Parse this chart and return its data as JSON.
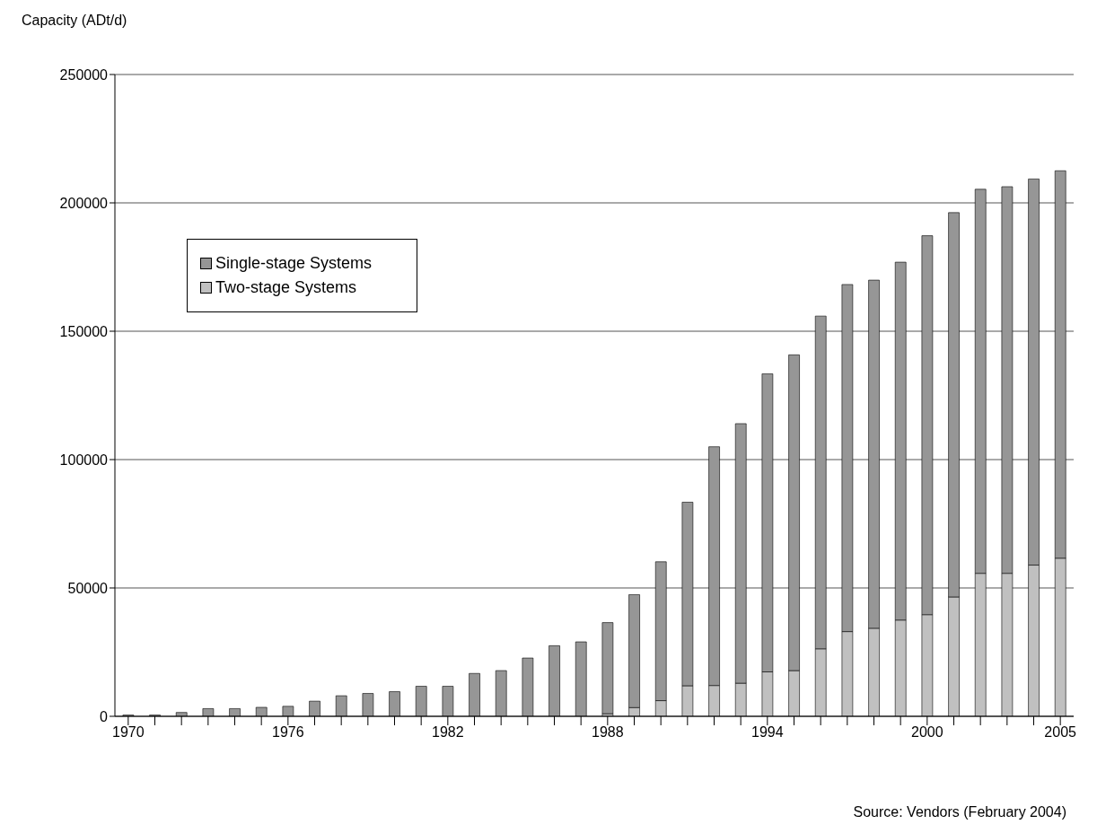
{
  "chart_data": {
    "type": "bar",
    "stacked": true,
    "ylabel": "Capacity (ADt/d)",
    "categories": [
      "1970",
      null,
      null,
      null,
      null,
      null,
      "1976",
      null,
      null,
      null,
      null,
      null,
      "1982",
      null,
      null,
      null,
      null,
      null,
      "1988",
      null,
      null,
      null,
      null,
      null,
      "1994",
      null,
      null,
      null,
      null,
      null,
      "2000",
      null,
      null,
      null,
      null,
      "2005"
    ],
    "series": [
      {
        "name": "Two-stage Systems",
        "color": "#c0c0c0",
        "values": [
          0,
          0,
          0,
          0,
          0,
          0,
          0,
          0,
          0,
          0,
          0,
          0,
          0,
          0,
          0,
          0,
          0,
          0,
          1000,
          3400,
          6100,
          11900,
          12000,
          12900,
          17300,
          17800,
          26300,
          33000,
          34300,
          37500,
          39600,
          46500,
          55700,
          55700,
          58900,
          61600
        ]
      },
      {
        "name": "Single-stage Systems",
        "color": "#969696",
        "values": [
          500,
          500,
          1500,
          3000,
          3000,
          3500,
          3900,
          5900,
          8000,
          8900,
          9600,
          11700,
          11700,
          16700,
          17800,
          22700,
          27500,
          29000,
          35500,
          44000,
          54100,
          71500,
          93000,
          101100,
          116100,
          123000,
          129600,
          135200,
          135600,
          139400,
          147600,
          149700,
          149600,
          150600,
          150400,
          150900
        ]
      }
    ],
    "ylim": [
      0,
      250000
    ],
    "yticks": [
      0,
      50000,
      100000,
      150000,
      200000,
      250000
    ],
    "grid": "y",
    "legend": "top left",
    "annotations": [
      "Source: Vendors (February 2004)"
    ]
  }
}
